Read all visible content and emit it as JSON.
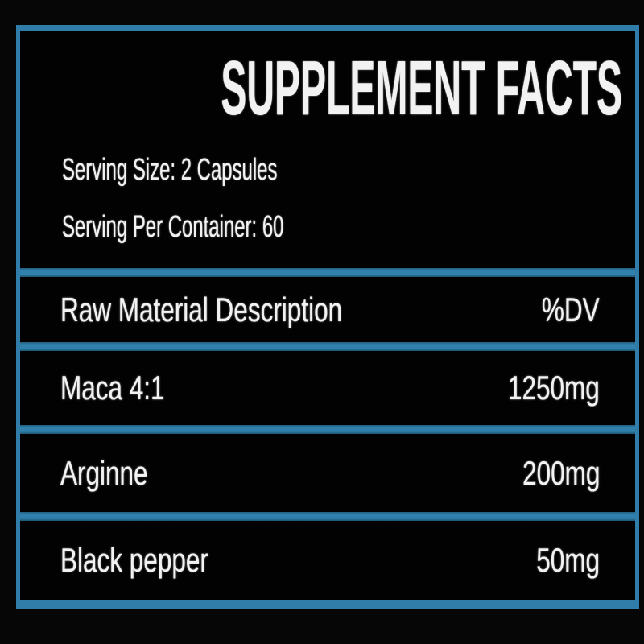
{
  "label": {
    "title": "SUPPLEMENT FACTS",
    "serving_size": "Serving Size: 2 Capsules",
    "servings_per_container": "Serving Per Container: 60",
    "table": {
      "header": {
        "name": "Raw Material Description",
        "dv": "%DV"
      },
      "rows": [
        {
          "name": "Maca 4:1",
          "amount": "1250mg"
        },
        {
          "name": "Arginne",
          "amount": "200mg"
        },
        {
          "name": "Black pepper",
          "amount": "50mg"
        }
      ]
    },
    "colors": {
      "accent_blue": "#2f7da8",
      "background": "#060606",
      "panel": "#020202",
      "text": "#f2f2f2"
    }
  }
}
